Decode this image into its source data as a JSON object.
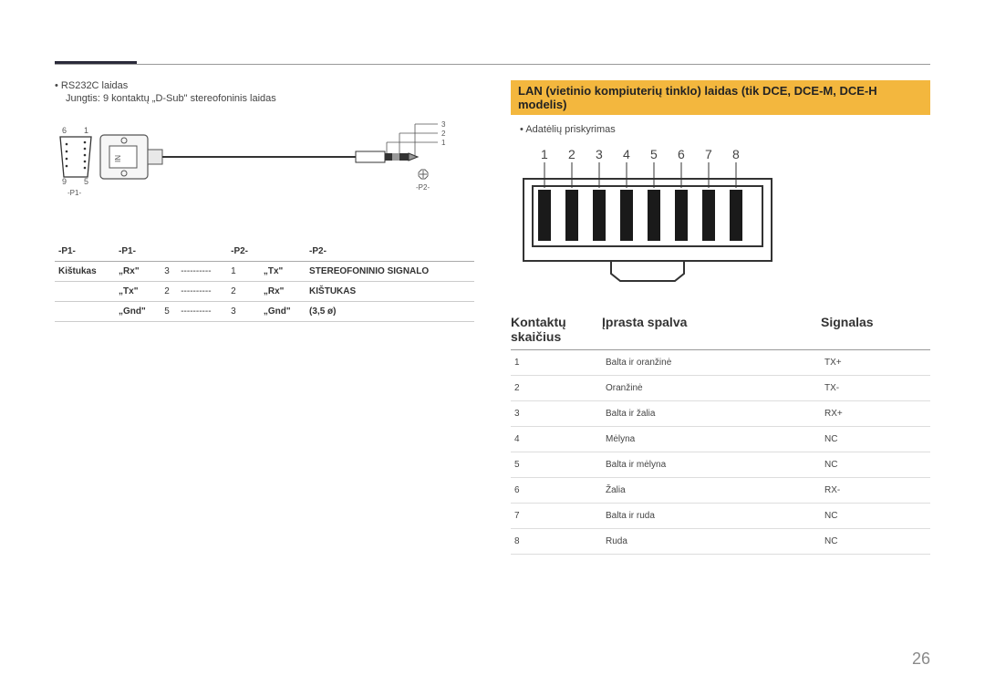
{
  "page_number": "26",
  "left": {
    "bullet": "RS232C laidas",
    "subline": "Jungtis: 9 kontaktų „D-Sub\" stereofoninis laidas",
    "p1_label": "-P1-",
    "p2_label": "-P2-",
    "dsub_nums": {
      "tl": "6",
      "tr": "1",
      "bl": "9",
      "br": "5"
    },
    "jack_nums": {
      "a": "3",
      "b": "2",
      "c": "1"
    },
    "table": {
      "h1": "-P1-",
      "h2": "-P1-",
      "h3": "",
      "h4": "-P2-",
      "h5": "-P2-",
      "rows": [
        {
          "a": "Kištukas",
          "b": "„Rx\"",
          "c": "3",
          "d": "----------",
          "e": "1",
          "f": "„Tx\"",
          "g": "STEREOFONINIO SIGNALO"
        },
        {
          "a": "",
          "b": "„Tx\"",
          "c": "2",
          "d": "----------",
          "e": "2",
          "f": "„Rx\"",
          "g": "KIŠTUKAS"
        },
        {
          "a": "",
          "b": "„Gnd\"",
          "c": "5",
          "d": "----------",
          "e": "3",
          "f": "„Gnd\"",
          "g": "(3,5 ø)"
        }
      ]
    }
  },
  "right": {
    "highlight": "LAN (vietinio kompiuterių tinklo) laidas (tik DCE, DCE-M, DCE-H modelis)",
    "bullet": "Adatėlių priskyrimas",
    "rj45_nums": [
      "1",
      "2",
      "3",
      "4",
      "5",
      "6",
      "7",
      "8"
    ],
    "headers": {
      "c1": "Kontaktų skaičius",
      "c2": "Įprasta spalva",
      "c3": "Signalas"
    },
    "rows": [
      {
        "n": "1",
        "color": "Balta ir oranžinė",
        "sig": "TX+"
      },
      {
        "n": "2",
        "color": "Oranžinė",
        "sig": "TX-"
      },
      {
        "n": "3",
        "color": "Balta ir žalia",
        "sig": "RX+"
      },
      {
        "n": "4",
        "color": "Mėlyna",
        "sig": "NC"
      },
      {
        "n": "5",
        "color": "Balta ir mėlyna",
        "sig": "NC"
      },
      {
        "n": "6",
        "color": "Žalia",
        "sig": "RX-"
      },
      {
        "n": "7",
        "color": "Balta ir ruda",
        "sig": "NC"
      },
      {
        "n": "8",
        "color": "Ruda",
        "sig": "NC"
      }
    ]
  }
}
